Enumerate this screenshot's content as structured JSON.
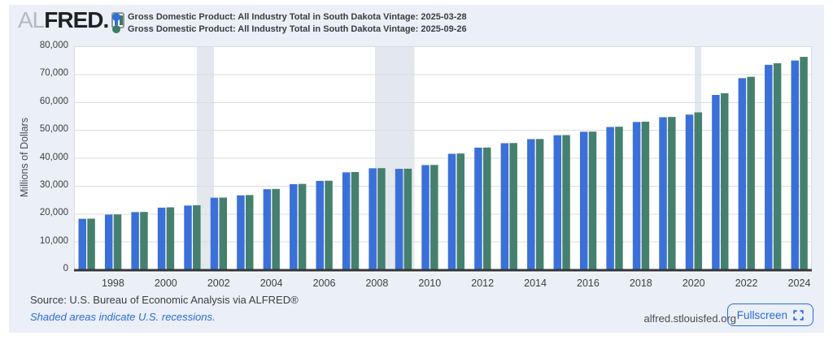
{
  "header": {
    "logo": {
      "al": "AL",
      "fred": "FRED",
      "dot": "."
    },
    "legend": [
      {
        "label": "Gross Domestic Product: All Industry Total in South Dakota Vintage: 2025-03-28",
        "color": "#2e6fdb"
      },
      {
        "label": "Gross Domestic Product: All Industry Total in South Dakota Vintage: 2025-09-26",
        "color": "#3d7a68"
      }
    ]
  },
  "chart_data": {
    "type": "bar",
    "title": "Gross Domestic Product: All Industry Total in South Dakota",
    "ylabel": "Millions of Dollars",
    "ylim": [
      0,
      80000
    ],
    "ytick_step": 10000,
    "yticks": [
      "0",
      "10,000",
      "20,000",
      "30,000",
      "40,000",
      "50,000",
      "60,000",
      "70,000",
      "80,000"
    ],
    "grid": true,
    "legend_position": "top",
    "categories": [
      1997,
      1998,
      1999,
      2000,
      2001,
      2002,
      2003,
      2004,
      2005,
      2006,
      2007,
      2008,
      2009,
      2010,
      2011,
      2012,
      2013,
      2014,
      2015,
      2016,
      2017,
      2018,
      2019,
      2020,
      2021,
      2022,
      2023,
      2024
    ],
    "xticks": [
      1998,
      2000,
      2002,
      2004,
      2006,
      2008,
      2010,
      2012,
      2014,
      2016,
      2018,
      2020,
      2022,
      2024
    ],
    "series": [
      {
        "name": "Gross Domestic Product: All Industry Total in South Dakota Vintage: 2025-03-28",
        "color": "#3b70d8",
        "values": [
          18150,
          19650,
          20550,
          22150,
          22900,
          25700,
          26550,
          28750,
          30550,
          31750,
          34800,
          36250,
          36050,
          37400,
          41450,
          43650,
          45250,
          46700,
          48100,
          49350,
          51050,
          52850,
          54550,
          55500,
          62550,
          68550,
          73350,
          74900
        ]
      },
      {
        "name": "Gross Domestic Product: All Industry Total in South Dakota Vintage: 2025-09-26",
        "color": "#45806f",
        "values": [
          18200,
          19700,
          20600,
          22250,
          23000,
          25750,
          26650,
          28850,
          30650,
          31800,
          34900,
          36300,
          36100,
          37450,
          41550,
          43700,
          45300,
          46750,
          48150,
          49400,
          51150,
          52950,
          54650,
          56300,
          63150,
          69050,
          73900,
          76200
        ]
      }
    ],
    "recessions": [
      {
        "start": 2001.17,
        "end": 2001.83
      },
      {
        "start": 2007.92,
        "end": 2009.42
      },
      {
        "start": 2020.04,
        "end": 2020.29
      }
    ],
    "colors": {
      "gridline": "#d9dce1",
      "recession_band": "#e3e8ef",
      "axis_line": "#33373b",
      "plot_bg": "#ffffff"
    }
  },
  "footer": {
    "source": "Source: U.S. Bureau of Economic Analysis via ALFRED®",
    "recession_note": "Shaded areas indicate U.S. recessions.",
    "site": "alfred.stlouisfed.org",
    "fullscreen_label": "Fullscreen"
  }
}
